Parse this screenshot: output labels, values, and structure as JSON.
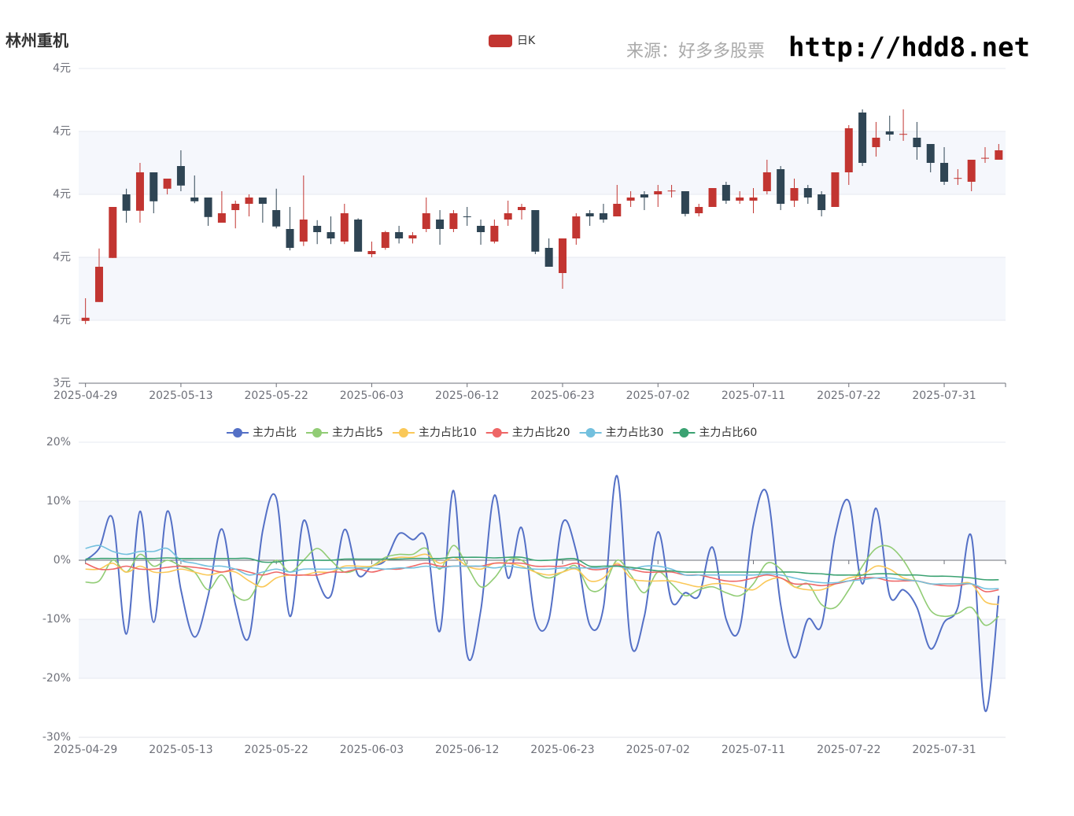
{
  "source": "来源：好多多股票",
  "url": "http://hdd8.net",
  "chart_data": [
    {
      "type": "candlestick",
      "title": "林州重机",
      "categories": [
        "2025-04-29",
        null,
        null,
        null,
        null,
        null,
        null,
        "2025-05-13",
        null,
        null,
        null,
        null,
        null,
        null,
        "2025-05-22",
        null,
        null,
        null,
        null,
        null,
        null,
        "2025-06-03",
        null,
        null,
        null,
        null,
        null,
        null,
        "2025-06-12",
        null,
        null,
        null,
        null,
        null,
        null,
        "2025-06-23",
        null,
        null,
        null,
        null,
        null,
        null,
        "2025-07-02",
        null,
        null,
        null,
        null,
        null,
        null,
        "2025-07-11",
        null,
        null,
        null,
        null,
        null,
        null,
        "2025-07-22",
        null,
        null,
        null,
        null,
        null,
        null,
        "2025-07-31",
        null,
        null,
        null,
        null
      ],
      "series": [
        {
          "name": "日K",
          "color": "#c23531",
          "down_color": "#2f4554",
          "open": [
            3.499,
            3.529,
            3.599,
            3.7,
            3.674,
            3.735,
            3.709,
            3.745,
            3.695,
            3.695,
            3.655,
            3.675,
            3.685,
            3.695,
            3.675,
            3.645,
            3.625,
            3.65,
            3.64,
            3.625,
            3.66,
            3.605,
            3.615,
            3.64,
            3.63,
            3.645,
            3.66,
            3.645,
            3.665,
            3.65,
            3.625,
            3.66,
            3.675,
            3.675,
            3.615,
            3.575,
            3.63,
            3.67,
            3.67,
            3.665,
            3.69,
            3.7,
            3.7,
            3.705,
            3.705,
            3.67,
            3.68,
            3.715,
            3.69,
            3.69,
            3.705,
            3.74,
            3.69,
            3.71,
            3.7,
            3.68,
            3.735,
            3.83,
            3.775,
            3.8,
            3.795,
            3.79,
            3.78,
            3.75,
            3.725,
            3.72,
            3.757,
            3.755
          ],
          "close": [
            3.504,
            3.585,
            3.68,
            3.674,
            3.735,
            3.689,
            3.725,
            3.714,
            3.689,
            3.664,
            3.67,
            3.685,
            3.695,
            3.685,
            3.649,
            3.615,
            3.66,
            3.64,
            3.63,
            3.67,
            3.609,
            3.61,
            3.64,
            3.63,
            3.635,
            3.67,
            3.645,
            3.67,
            3.664,
            3.64,
            3.65,
            3.67,
            3.68,
            3.609,
            3.585,
            3.63,
            3.665,
            3.665,
            3.66,
            3.685,
            3.695,
            3.695,
            3.705,
            3.706,
            3.669,
            3.68,
            3.71,
            3.69,
            3.695,
            3.695,
            3.735,
            3.685,
            3.71,
            3.695,
            3.675,
            3.735,
            3.805,
            3.75,
            3.79,
            3.795,
            3.796,
            3.775,
            3.75,
            3.72,
            3.726,
            3.755,
            3.758,
            3.77
          ],
          "high": [
            3.535,
            3.614,
            3.68,
            3.709,
            3.75,
            3.735,
            3.725,
            3.77,
            3.73,
            3.695,
            3.705,
            3.69,
            3.7,
            3.695,
            3.709,
            3.68,
            3.73,
            3.659,
            3.665,
            3.685,
            3.662,
            3.625,
            3.642,
            3.65,
            3.64,
            3.695,
            3.675,
            3.675,
            3.68,
            3.66,
            3.66,
            3.69,
            3.685,
            3.675,
            3.63,
            3.63,
            3.67,
            3.675,
            3.685,
            3.715,
            3.705,
            3.705,
            3.715,
            3.715,
            3.705,
            3.685,
            3.71,
            3.72,
            3.705,
            3.71,
            3.755,
            3.745,
            3.725,
            3.715,
            3.705,
            3.735,
            3.81,
            3.835,
            3.815,
            3.825,
            3.835,
            3.815,
            3.78,
            3.775,
            3.74,
            3.755,
            3.775,
            3.78
          ],
          "low": [
            3.494,
            3.529,
            3.599,
            3.655,
            3.655,
            3.67,
            3.7,
            3.705,
            3.686,
            3.65,
            3.655,
            3.646,
            3.665,
            3.655,
            3.646,
            3.611,
            3.618,
            3.621,
            3.621,
            3.621,
            3.609,
            3.6,
            3.612,
            3.622,
            3.622,
            3.64,
            3.62,
            3.64,
            3.65,
            3.62,
            3.622,
            3.65,
            3.66,
            3.605,
            3.585,
            3.55,
            3.62,
            3.65,
            3.655,
            3.665,
            3.68,
            3.675,
            3.68,
            3.695,
            3.665,
            3.665,
            3.68,
            3.685,
            3.685,
            3.67,
            3.7,
            3.675,
            3.68,
            3.685,
            3.665,
            3.68,
            3.715,
            3.745,
            3.76,
            3.785,
            3.785,
            3.755,
            3.735,
            3.715,
            3.715,
            3.705,
            3.75,
            3.755
          ]
        }
      ],
      "ylim": [
        3.4,
        3.9
      ],
      "yticks": [
        {
          "value": 3.4,
          "label": "3元"
        },
        {
          "value": 3.5,
          "label": "4元"
        },
        {
          "value": 3.6,
          "label": "4元"
        },
        {
          "value": 3.7,
          "label": "4元"
        },
        {
          "value": 3.8,
          "label": "4元"
        },
        {
          "value": 3.9,
          "label": "4元"
        }
      ],
      "grid": true
    },
    {
      "type": "line",
      "categories": [
        "2025-04-29",
        null,
        null,
        null,
        null,
        null,
        null,
        "2025-05-13",
        null,
        null,
        null,
        null,
        null,
        null,
        "2025-05-22",
        null,
        null,
        null,
        null,
        null,
        null,
        "2025-06-03",
        null,
        null,
        null,
        null,
        null,
        null,
        "2025-06-12",
        null,
        null,
        null,
        null,
        null,
        null,
        "2025-06-23",
        null,
        null,
        null,
        null,
        null,
        null,
        "2025-07-02",
        null,
        null,
        null,
        null,
        null,
        null,
        "2025-07-11",
        null,
        null,
        null,
        null,
        null,
        null,
        "2025-07-22",
        null,
        null,
        null,
        null,
        null,
        null,
        "2025-07-31",
        null,
        null,
        null,
        null
      ],
      "series": [
        {
          "name": "主力占比",
          "color": "#5470c6",
          "values": [
            0,
            2,
            7,
            -12.5,
            8.3,
            -10.5,
            8.3,
            -5,
            -13,
            -6,
            5.3,
            -7.5,
            -13,
            5,
            10.5,
            -9.5,
            6.7,
            -3,
            -6,
            5.2,
            -2.5,
            -1,
            0,
            4.5,
            3.5,
            3.5,
            -12,
            11.8,
            -16,
            -8.5,
            11,
            -3,
            5.5,
            -10,
            -10,
            6.3,
            1.5,
            -11,
            -8,
            14.3,
            -14,
            -9.5,
            4.8,
            -7,
            -5.5,
            -6,
            2.2,
            -10,
            -11.5,
            6,
            11.3,
            -7.5,
            -16.5,
            -10,
            -11,
            4.2,
            10,
            -4,
            8.8,
            -6,
            -5,
            -8,
            -15,
            -10.5,
            -8,
            4,
            -25.5,
            -6
          ]
        },
        {
          "name": "主力占比5",
          "color": "#91cc75",
          "values": [
            -3.7,
            -3.5,
            0,
            -2,
            1,
            -1,
            0,
            -1,
            -2,
            -5,
            -2.5,
            -6,
            -6.5,
            -2.5,
            0,
            -2,
            0,
            2,
            0,
            -2,
            -1.5,
            -1,
            0.5,
            1,
            1,
            2,
            -1.5,
            2.5,
            -1,
            -4.5,
            -3,
            0,
            0,
            -2,
            -3,
            -2,
            -1,
            -5,
            -4.5,
            0,
            -2.5,
            -5.5,
            -2,
            -4,
            -6,
            -5,
            -4.5,
            -5.5,
            -6,
            -4,
            -0.5,
            -1.5,
            -4.5,
            -4,
            -7.5,
            -8,
            -5,
            -1,
            2,
            2.3,
            0,
            -4,
            -8.5,
            -9.5,
            -9,
            -8,
            -11,
            -9.5
          ]
        },
        {
          "name": "主力占比10",
          "color": "#fac858",
          "values": [
            -1.5,
            -1.5,
            -0.5,
            -2,
            -1,
            -2,
            -2,
            -1.5,
            -2,
            -2.5,
            -2,
            -2,
            -3.5,
            -4.5,
            -3,
            -2.5,
            -2.5,
            -2,
            -2,
            -1,
            -1,
            -1,
            0,
            0.5,
            0.5,
            1,
            -0.5,
            0.5,
            -1,
            -1.5,
            -0.5,
            -0.5,
            -1,
            -2,
            -2.5,
            -2,
            -1.5,
            -3.5,
            -3,
            -0.5,
            -3,
            -3.5,
            -3.5,
            -3.5,
            -4,
            -4.5,
            -4,
            -4,
            -4.5,
            -5,
            -3.5,
            -3,
            -4.5,
            -5,
            -5,
            -4,
            -3,
            -2.5,
            -1,
            -1.5,
            -3,
            -3.5,
            -4,
            -4,
            -4,
            -4,
            -7,
            -7.5
          ]
        },
        {
          "name": "主力占比20",
          "color": "#ee6666",
          "values": [
            -0.5,
            -1.5,
            -1.5,
            -1,
            -1.5,
            -1.5,
            -1.2,
            -1,
            -1.2,
            -1.5,
            -2,
            -1.5,
            -2,
            -2.5,
            -2,
            -2.5,
            -2.5,
            -2.5,
            -2,
            -2,
            -1.5,
            -2,
            -1.5,
            -1.5,
            -1,
            -0.5,
            -1,
            -1,
            -1,
            -1,
            -0.5,
            -0.5,
            -0.5,
            -1,
            -1,
            -1,
            -0.5,
            -1.5,
            -1.5,
            -0.8,
            -1.5,
            -2,
            -2,
            -2,
            -2.5,
            -2.5,
            -3,
            -3.5,
            -3.5,
            -3,
            -2.5,
            -3,
            -4,
            -4,
            -4.3,
            -4,
            -3.5,
            -3,
            -3,
            -3.5,
            -3.5,
            -3.5,
            -4,
            -4.3,
            -4.3,
            -4,
            -5.3,
            -5
          ]
        },
        {
          "name": "主力占比30",
          "color": "#73c0de",
          "values": [
            2,
            2.5,
            1.5,
            1,
            1.5,
            1.5,
            2,
            0,
            -0.5,
            -1,
            -1,
            -1.5,
            -2.5,
            -2,
            -1.5,
            -2,
            -1.5,
            -1.5,
            -1.5,
            -1.3,
            -1.3,
            -1.3,
            -1.5,
            -1.3,
            -1.3,
            -1,
            -1.3,
            -1,
            -1,
            -1,
            -1.3,
            -1,
            -1.3,
            -1.5,
            -1.5,
            -1.3,
            -1.3,
            -1.3,
            -1.3,
            -1,
            -1.5,
            -1,
            -1,
            -1.5,
            -2.5,
            -2.5,
            -2.5,
            -2.5,
            -2.5,
            -2.5,
            -2.3,
            -2.5,
            -3,
            -3.5,
            -3.8,
            -3.8,
            -3.5,
            -3.3,
            -3,
            -3,
            -3.3,
            -3.5,
            -4,
            -4,
            -4,
            -4,
            -4.8,
            -4.8
          ]
        },
        {
          "name": "主力占比60",
          "color": "#3ba272",
          "values": [
            0.2,
            0.3,
            0.3,
            0.3,
            0.3,
            0.3,
            0.4,
            0.3,
            0.3,
            0.3,
            0.3,
            0.3,
            0.3,
            -0.3,
            -0.3,
            0,
            0,
            0,
            0,
            0.2,
            0.2,
            0.2,
            0.2,
            0.2,
            0.3,
            0.3,
            0.3,
            0.5,
            0.5,
            0.5,
            0.4,
            0.5,
            0.5,
            0,
            0,
            0.2,
            0.2,
            -1,
            -1,
            -1,
            -1.2,
            -1.5,
            -1.8,
            -1.8,
            -2,
            -2,
            -2,
            -2,
            -2,
            -2,
            -2,
            -2,
            -2,
            -2.2,
            -2.3,
            -2.5,
            -2.5,
            -2.5,
            -2.3,
            -2.3,
            -2.5,
            -2.5,
            -2.7,
            -2.7,
            -2.8,
            -3,
            -3.3,
            -3.3
          ]
        }
      ],
      "ylim": [
        -30,
        20
      ],
      "yticks": [
        {
          "value": -30,
          "label": "-30%"
        },
        {
          "value": -20,
          "label": "-20%"
        },
        {
          "value": -10,
          "label": "-10%"
        },
        {
          "value": 0,
          "label": "0%"
        },
        {
          "value": 10,
          "label": "10%"
        },
        {
          "value": 20,
          "label": "20%"
        }
      ],
      "grid": true
    }
  ]
}
